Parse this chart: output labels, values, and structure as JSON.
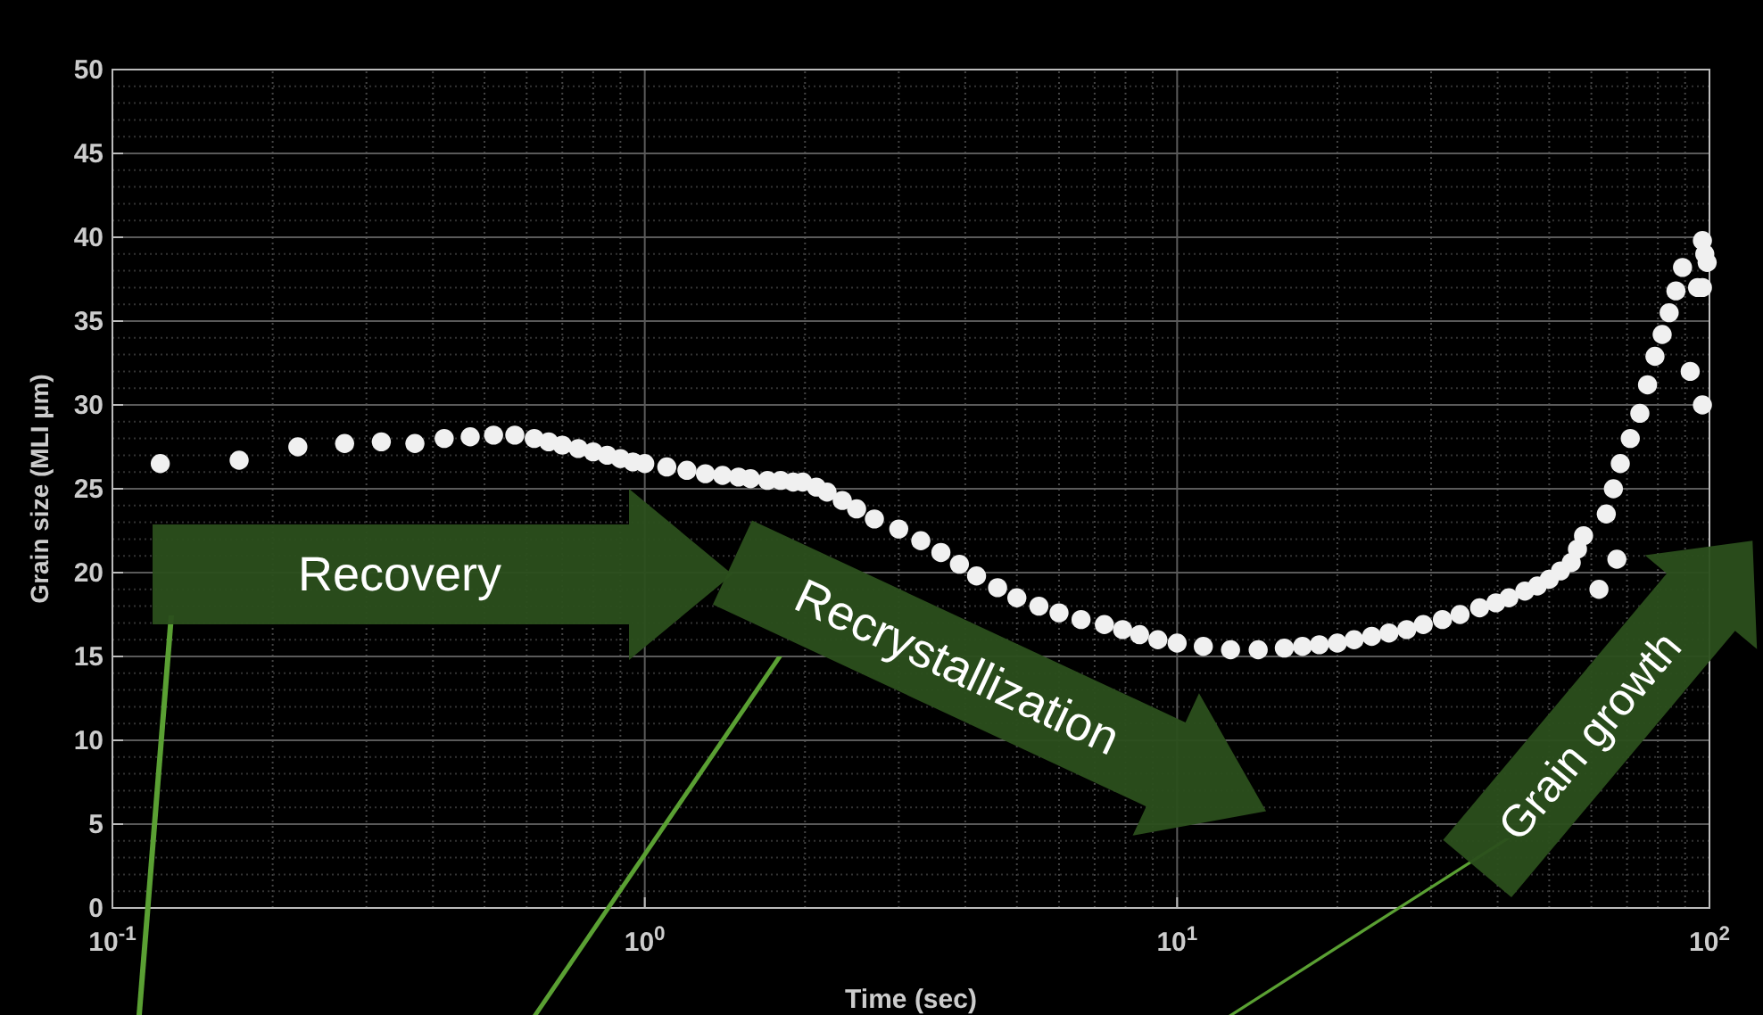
{
  "chart_data": {
    "type": "scatter",
    "xlabel": "Time (sec)",
    "ylabel": "Grain size (MLI µm)",
    "log": "x",
    "xlim": [
      0.1,
      100
    ],
    "xticks": [
      {
        "value": 0.1,
        "label": "10$^{-1}$"
      },
      {
        "value": 1,
        "label": "10$^{0}$"
      },
      {
        "value": 10,
        "label": "10$^{1}$"
      },
      {
        "value": 100,
        "label": "10$^{2}$"
      }
    ],
    "ylim": [
      0,
      50
    ],
    "yticks": [
      0,
      5,
      10,
      15,
      20,
      25,
      30,
      35,
      40,
      45,
      50
    ],
    "grid": true,
    "marker": "circle",
    "series": [
      {
        "color": "#f0f0f0",
        "x": [
          0.123,
          0.173,
          0.223,
          0.273,
          0.32,
          0.37,
          0.42,
          0.47,
          0.52,
          0.57,
          0.62,
          0.66,
          0.7,
          0.75,
          0.8,
          0.85,
          0.9,
          0.95,
          1.0,
          1.1,
          1.2,
          1.3,
          1.4,
          1.5,
          1.58,
          1.7,
          1.8,
          1.9,
          1.98,
          2.1,
          2.2,
          2.35,
          2.5,
          2.7,
          3.0,
          3.3,
          3.6,
          3.9,
          4.2,
          4.6,
          5.0,
          5.5,
          6.0,
          6.6,
          7.3,
          7.9,
          8.5,
          9.2,
          10,
          11.2,
          12.6,
          14.2,
          15.9,
          17.2,
          18.5,
          20,
          21.5,
          23.2,
          25,
          27,
          29,
          31.5,
          34,
          37,
          39.7,
          42,
          45,
          47.5,
          50,
          52.5,
          55,
          56.5,
          58,
          62,
          67,
          64,
          66,
          68,
          71,
          74,
          76.5,
          79,
          81.5,
          84,
          86.5,
          89,
          92,
          95,
          97,
          97,
          97,
          99,
          98
        ],
        "values": [
          26.5,
          26.7,
          27.5,
          27.7,
          27.8,
          27.7,
          28,
          28.1,
          28.2,
          28.2,
          28,
          27.8,
          27.6,
          27.4,
          27.2,
          27,
          26.8,
          26.6,
          26.5,
          26.3,
          26.1,
          25.9,
          25.8,
          25.7,
          25.6,
          25.5,
          25.5,
          25.4,
          25.4,
          25.1,
          24.8,
          24.3,
          23.8,
          23.2,
          22.6,
          21.9,
          21.2,
          20.5,
          19.8,
          19.1,
          18.5,
          18,
          17.6,
          17.2,
          16.9,
          16.6,
          16.3,
          16,
          15.8,
          15.6,
          15.4,
          15.4,
          15.5,
          15.6,
          15.7,
          15.8,
          16,
          16.2,
          16.4,
          16.6,
          16.9,
          17.2,
          17.5,
          17.9,
          18.2,
          18.5,
          18.9,
          19.2,
          19.6,
          20.1,
          20.6,
          21.4,
          22.2,
          19,
          20.8,
          23.5,
          25,
          26.5,
          28,
          29.5,
          31.2,
          32.9,
          34.2,
          35.5,
          36.8,
          38.2,
          32,
          37,
          39.8,
          37,
          30,
          38.5,
          39
        ]
      }
    ],
    "annotations": [
      "Recovery",
      "Recrystallization",
      "Grain growth"
    ]
  }
}
